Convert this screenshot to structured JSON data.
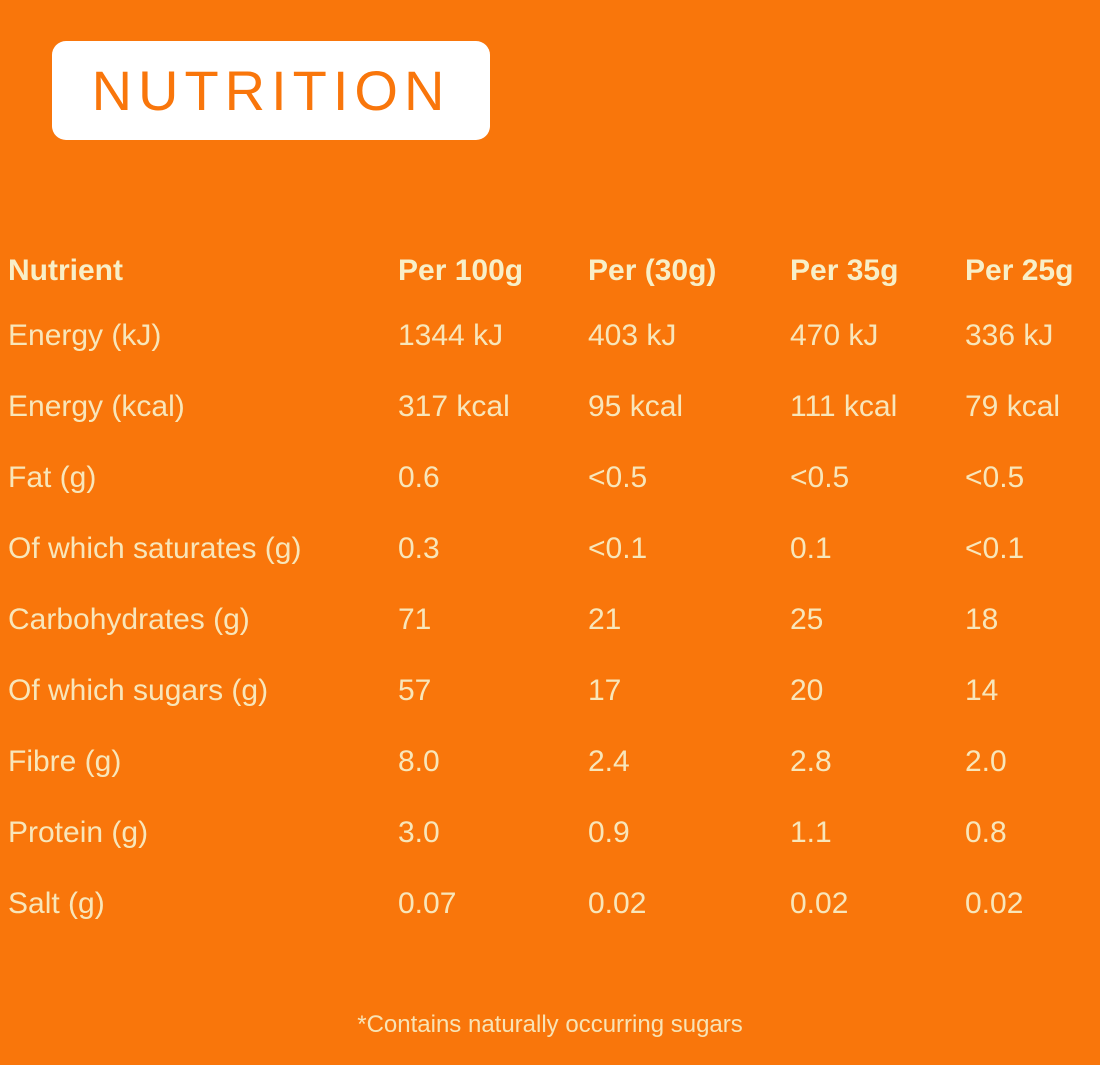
{
  "colors": {
    "background": "#F9760B",
    "title_box": "#FFFFFF",
    "title_text": "#F9760B",
    "table_text": "#F8EFC8"
  },
  "header": {
    "title": "NUTRITION"
  },
  "table": {
    "columns": [
      "Nutrient",
      "Per 100g",
      "Per (30g)",
      "Per 35g",
      "Per 25g"
    ],
    "rows": [
      {
        "label": "Energy (kJ)",
        "values": [
          "1344 kJ",
          "403 kJ",
          "470 kJ",
          "336 kJ"
        ]
      },
      {
        "label": "Energy (kcal)",
        "values": [
          "317 kcal",
          "95 kcal",
          "111 kcal",
          "79 kcal"
        ]
      },
      {
        "label": "Fat (g)",
        "values": [
          "0.6",
          "<0.5",
          "<0.5",
          "<0.5"
        ]
      },
      {
        "label": "Of which saturates (g)",
        "values": [
          "0.3",
          "<0.1",
          "0.1",
          "<0.1"
        ]
      },
      {
        "label": "Carbohydrates (g)",
        "values": [
          "71",
          "21",
          "25",
          "18"
        ]
      },
      {
        "label": "Of which sugars (g)",
        "values": [
          "57",
          "17",
          "20",
          "14"
        ]
      },
      {
        "label": "Fibre (g)",
        "values": [
          "8.0",
          "2.4",
          "2.8",
          "2.0"
        ]
      },
      {
        "label": "Protein (g)",
        "values": [
          "3.0",
          "0.9",
          "1.1",
          "0.8"
        ]
      },
      {
        "label": "Salt (g)",
        "values": [
          "0.07",
          "0.02",
          "0.02",
          "0.02"
        ]
      }
    ]
  },
  "footnote": "*Contains naturally occurring sugars"
}
